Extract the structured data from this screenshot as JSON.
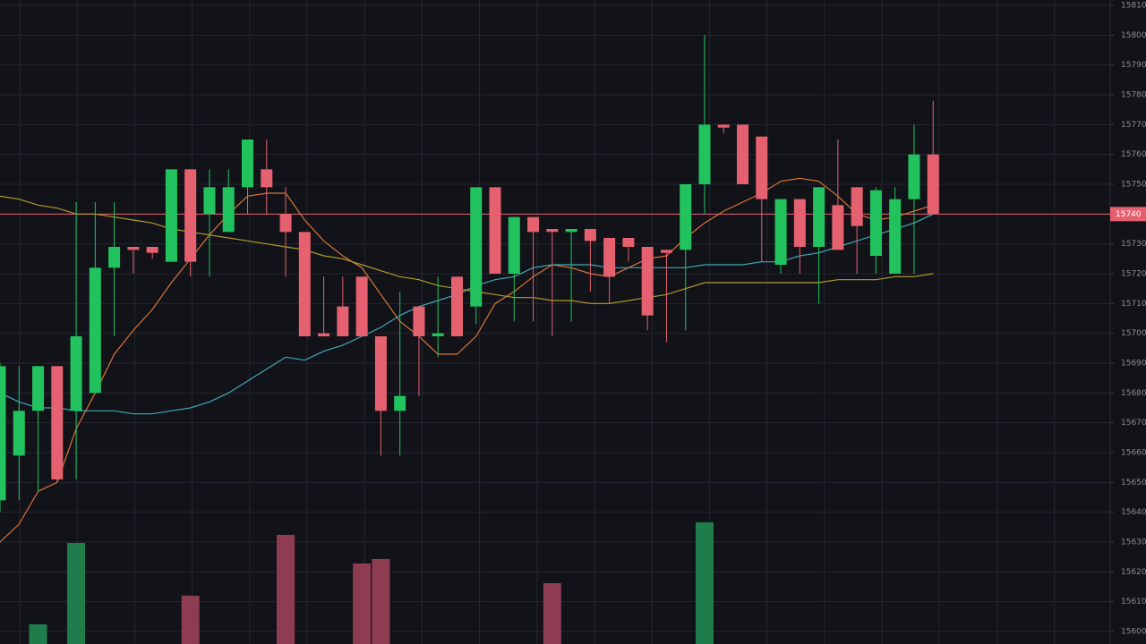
{
  "chart_data": {
    "type": "candlestick",
    "ylim": [
      15595.8,
      15811.8
    ],
    "yticks": [
      15600,
      15610,
      15620,
      15630,
      15640,
      15650,
      15660,
      15670,
      15680,
      15690,
      15700,
      15710,
      15720,
      15730,
      15740,
      15750,
      15760,
      15770,
      15780,
      15790,
      15800,
      15810
    ],
    "grid": true,
    "up_color": "#22c35e",
    "down_color": "#e5616f",
    "up_volume_color": "#1f7d4c",
    "down_volume_color": "#8e3c52",
    "last_price": 15740,
    "last_price_color": "#e5616f",
    "candles": [
      {
        "o": 15644,
        "h": 15690,
        "l": 15640,
        "c": 15689
      },
      {
        "o": 15659,
        "h": 15689,
        "l": 15644,
        "c": 15674
      },
      {
        "o": 15674,
        "h": 15689,
        "l": 15647,
        "c": 15689
      },
      {
        "o": 15689,
        "h": 15689,
        "l": 15650,
        "c": 15651
      },
      {
        "o": 15674,
        "h": 15744,
        "l": 15651,
        "c": 15699
      },
      {
        "o": 15680,
        "h": 15744,
        "l": 15680,
        "c": 15722
      },
      {
        "o": 15722,
        "h": 15744,
        "l": 15699,
        "c": 15729
      },
      {
        "o": 15729,
        "h": 15729,
        "l": 15720,
        "c": 15728
      },
      {
        "o": 15729,
        "h": 15729,
        "l": 15725,
        "c": 15727
      },
      {
        "o": 15724,
        "h": 15755,
        "l": 15724,
        "c": 15755
      },
      {
        "o": 15755,
        "h": 15755,
        "l": 15719,
        "c": 15724
      },
      {
        "o": 15740,
        "h": 15755,
        "l": 15719,
        "c": 15749
      },
      {
        "o": 15734,
        "h": 15755,
        "l": 15734,
        "c": 15749
      },
      {
        "o": 15749,
        "h": 15765,
        "l": 15740,
        "c": 15765
      },
      {
        "o": 15755,
        "h": 15765,
        "l": 15740,
        "c": 15749
      },
      {
        "o": 15740,
        "h": 15749,
        "l": 15719,
        "c": 15734
      },
      {
        "o": 15734,
        "h": 15734,
        "l": 15699,
        "c": 15699
      },
      {
        "o": 15700,
        "h": 15719,
        "l": 15699,
        "c": 15699
      },
      {
        "o": 15709,
        "h": 15719,
        "l": 15699,
        "c": 15699
      },
      {
        "o": 15719,
        "h": 15719,
        "l": 15699,
        "c": 15699
      },
      {
        "o": 15699,
        "h": 15699,
        "l": 15659,
        "c": 15674
      },
      {
        "o": 15674,
        "h": 15714,
        "l": 15659,
        "c": 15679
      },
      {
        "o": 15709,
        "h": 15709,
        "l": 15679,
        "c": 15699
      },
      {
        "o": 15699,
        "h": 15719,
        "l": 15692,
        "c": 15700
      },
      {
        "o": 15719,
        "h": 15719,
        "l": 15699,
        "c": 15699
      },
      {
        "o": 15709,
        "h": 15749,
        "l": 15703,
        "c": 15749
      },
      {
        "o": 15749,
        "h": 15749,
        "l": 15720,
        "c": 15720
      },
      {
        "o": 15720,
        "h": 15739,
        "l": 15704,
        "c": 15739
      },
      {
        "o": 15739,
        "h": 15739,
        "l": 15704,
        "c": 15734
      },
      {
        "o": 15735,
        "h": 15735,
        "l": 15699,
        "c": 15734
      },
      {
        "o": 15734,
        "h": 15735,
        "l": 15704,
        "c": 15735
      },
      {
        "o": 15735,
        "h": 15735,
        "l": 15714,
        "c": 15731
      },
      {
        "o": 15732,
        "h": 15732,
        "l": 15710,
        "c": 15719
      },
      {
        "o": 15732,
        "h": 15732,
        "l": 15724,
        "c": 15729
      },
      {
        "o": 15729,
        "h": 15729,
        "l": 15701,
        "c": 15706
      },
      {
        "o": 15728,
        "h": 15728,
        "l": 15697,
        "c": 15727
      },
      {
        "o": 15728,
        "h": 15750,
        "l": 15701,
        "c": 15750
      },
      {
        "o": 15750,
        "h": 15800,
        "l": 15740,
        "c": 15770
      },
      {
        "o": 15770,
        "h": 15770,
        "l": 15767,
        "c": 15769
      },
      {
        "o": 15770,
        "h": 15770,
        "l": 15750,
        "c": 15750
      },
      {
        "o": 15766,
        "h": 15766,
        "l": 15724,
        "c": 15745
      },
      {
        "o": 15723,
        "h": 15745,
        "l": 15720,
        "c": 15745
      },
      {
        "o": 15745,
        "h": 15745,
        "l": 15720,
        "c": 15729
      },
      {
        "o": 15729,
        "h": 15749,
        "l": 15710,
        "c": 15749
      },
      {
        "o": 15743,
        "h": 15765,
        "l": 15728,
        "c": 15728
      },
      {
        "o": 15749,
        "h": 15749,
        "l": 15720,
        "c": 15736
      },
      {
        "o": 15726,
        "h": 15749,
        "l": 15720,
        "c": 15748
      },
      {
        "o": 15720,
        "h": 15749,
        "l": 15720,
        "c": 15745
      },
      {
        "o": 15745,
        "h": 15770,
        "l": 15720,
        "c": 15760
      },
      {
        "o": 15760,
        "h": 15778,
        "l": 15740,
        "c": 15740
      }
    ],
    "volume": [
      null,
      null,
      22,
      null,
      113,
      null,
      null,
      null,
      null,
      null,
      54,
      null,
      null,
      null,
      null,
      122,
      null,
      null,
      null,
      90,
      95,
      null,
      null,
      null,
      null,
      null,
      null,
      null,
      null,
      68,
      null,
      null,
      null,
      null,
      null,
      null,
      null,
      136,
      null,
      null,
      null,
      null,
      null,
      null,
      null,
      null,
      null,
      null,
      null,
      null
    ],
    "moving_averages": [
      {
        "color": "#d9733a",
        "values": [
          15630,
          15636,
          15647,
          15650,
          15668,
          15680,
          15693,
          15701,
          15708,
          15717,
          15725,
          15733,
          15740,
          15746,
          15747,
          15747,
          15738,
          15731,
          15726,
          15722,
          15713,
          15704,
          15699,
          15693,
          15693,
          15699,
          15710,
          15714,
          15719,
          15723,
          15722,
          15720,
          15719,
          15722,
          15725,
          15726,
          15732,
          15737,
          15741,
          15744,
          15747,
          15751,
          15752,
          15751,
          15746,
          15740,
          15738,
          15739,
          15741,
          15743
        ]
      },
      {
        "color": "#3fa7b8",
        "values": [
          15680,
          15677,
          15675,
          15675,
          15674,
          15674,
          15674,
          15673,
          15673,
          15674,
          15675,
          15677,
          15680,
          15684,
          15688,
          15692,
          15691,
          15694,
          15696,
          15699,
          15702,
          15706,
          15709,
          15711,
          15713,
          15716,
          15718,
          15719,
          15722,
          15723,
          15723,
          15723,
          15722,
          15722,
          15722,
          15722,
          15722,
          15723,
          15723,
          15723,
          15724,
          15724,
          15726,
          15727,
          15729,
          15731,
          15733,
          15735,
          15737,
          15740
        ]
      },
      {
        "color": "#b39a2e",
        "values": [
          15746,
          15745,
          15743,
          15742,
          15740,
          15740,
          15739,
          15738,
          15737,
          15735,
          15734,
          15733,
          15732,
          15731,
          15730,
          15729,
          15728,
          15726,
          15725,
          15723,
          15721,
          15719,
          15718,
          15716,
          15715,
          15714,
          15713,
          15712,
          15712,
          15711,
          15711,
          15710,
          15710,
          15711,
          15712,
          15713,
          15715,
          15717,
          15717,
          15717,
          15717,
          15717,
          15717,
          15717,
          15718,
          15718,
          15718,
          15719,
          15719,
          15720
        ]
      }
    ]
  }
}
